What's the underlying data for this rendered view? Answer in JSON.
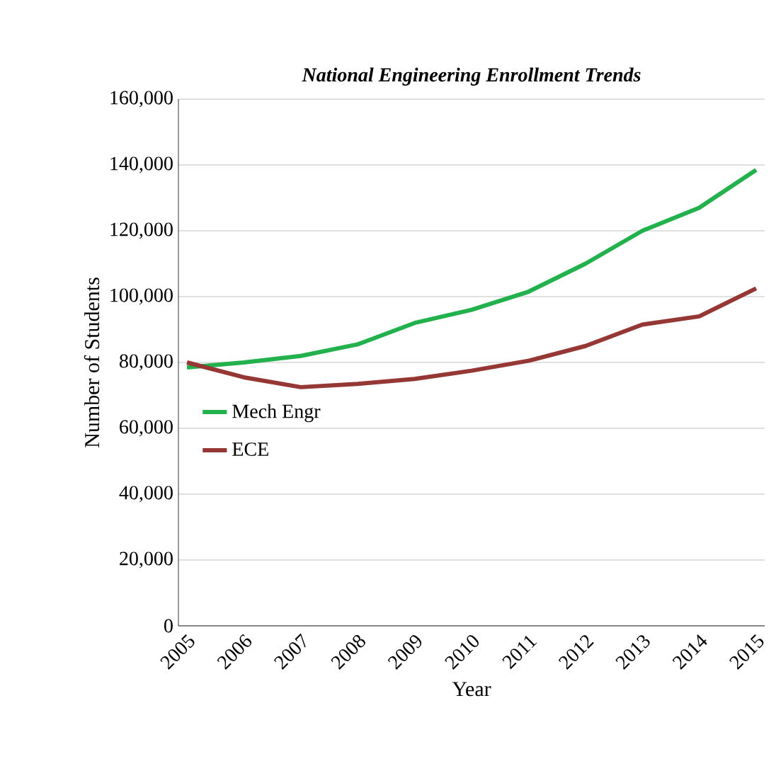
{
  "chart_data": {
    "type": "line",
    "title": "National Engineering Enrollment Trends",
    "xlabel": "Year",
    "ylabel": "Number of Students",
    "categories": [
      "2005",
      "2006",
      "2007",
      "2008",
      "2009",
      "2010",
      "2011",
      "2012",
      "2013",
      "2014",
      "2015"
    ],
    "series": [
      {
        "name": "Mech Engr",
        "color": "#22b14c",
        "values": [
          78500,
          80000,
          82000,
          85500,
          92000,
          96000,
          101500,
          110000,
          120000,
          127000,
          138500
        ]
      },
      {
        "name": "ECE",
        "color": "#953735",
        "values": [
          80000,
          75500,
          72500,
          73500,
          75000,
          77500,
          80500,
          85000,
          91500,
          94000,
          102500
        ]
      }
    ],
    "ylim": [
      0,
      160000
    ],
    "yticks": [
      {
        "value": 0,
        "label": "0"
      },
      {
        "value": 20000,
        "label": "20,000"
      },
      {
        "value": 40000,
        "label": "40,000"
      },
      {
        "value": 60000,
        "label": "60,000"
      },
      {
        "value": 80000,
        "label": "80,000"
      },
      {
        "value": 100000,
        "label": "100,000"
      },
      {
        "value": 120000,
        "label": "120,000"
      },
      {
        "value": 140000,
        "label": "140,000"
      },
      {
        "value": 160000,
        "label": "160,000"
      }
    ],
    "grid": "y",
    "legend": "left",
    "marker": "none",
    "line_style": "solid"
  }
}
